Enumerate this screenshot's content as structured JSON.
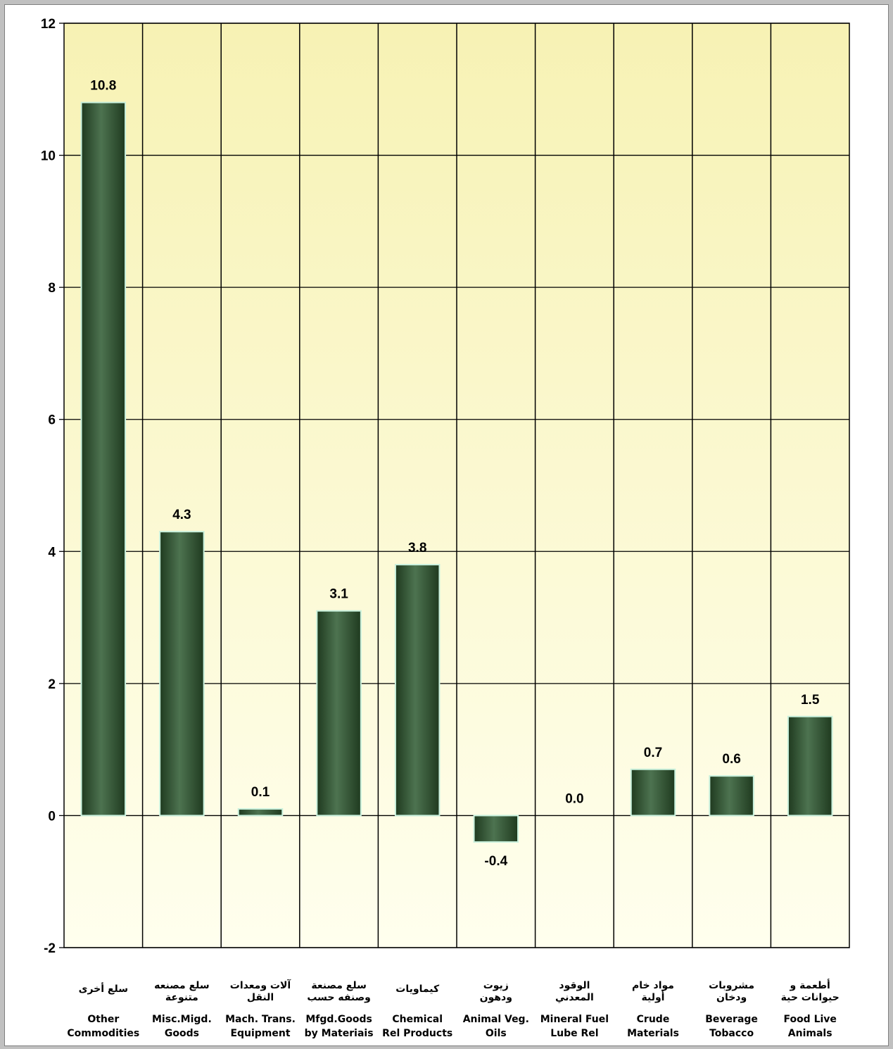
{
  "chart_data": {
    "type": "bar",
    "categories": [
      {
        "ar": [
          "سلع  أخرى"
        ],
        "en": [
          "Other",
          "Commodities"
        ]
      },
      {
        "ar": [
          "سلع مصنعه",
          "متنوعة"
        ],
        "en": [
          "Misc.Migd.",
          "Goods"
        ]
      },
      {
        "ar": [
          "آلات ومعدات",
          "النقل"
        ],
        "en": [
          "Mach. Trans.",
          "Equipment"
        ]
      },
      {
        "ar": [
          "سلع مصنعة",
          "وصنفه حسب"
        ],
        "en": [
          "Mfgd.Goods",
          "by Materiais"
        ]
      },
      {
        "ar": [
          "كيماويات"
        ],
        "en": [
          "Chemical",
          "Rel Products"
        ]
      },
      {
        "ar": [
          "زيوت",
          "ودهون"
        ],
        "en": [
          "Animal  Veg.",
          "Oils"
        ]
      },
      {
        "ar": [
          "الوقود",
          "المعدني"
        ],
        "en": [
          "Mineral Fuel",
          "Lube  Rel"
        ]
      },
      {
        "ar": [
          "مواد خام",
          "أولية"
        ],
        "en": [
          "Crude",
          "Materials"
        ]
      },
      {
        "ar": [
          "مشروبات",
          "ودخان"
        ],
        "en": [
          "Beverage",
          "Tobacco"
        ]
      },
      {
        "ar": [
          "أطعمة   و",
          "حيوانات حية"
        ],
        "en": [
          "Food  Live",
          "Animals"
        ]
      }
    ],
    "values": [
      10.8,
      4.3,
      0.1,
      3.1,
      3.8,
      -0.4,
      0.0,
      0.7,
      0.6,
      1.5
    ],
    "value_labels": [
      "10.8",
      "4.3",
      "0.1",
      "3.1",
      "3.8",
      "-0.4",
      "0.0",
      "0.7",
      "0.6",
      "1.5"
    ],
    "ylim": [
      -2,
      12
    ],
    "yticks": [
      -2,
      0,
      2,
      4,
      6,
      8,
      10,
      12
    ],
    "grid": true,
    "colors": {
      "bar_dark": "#1f3a1f",
      "bar_light": "#4d7350",
      "bar_edge": "#c8f0dc",
      "plot_top": "#f7f2b4",
      "plot_bottom": "#ffffee"
    }
  }
}
